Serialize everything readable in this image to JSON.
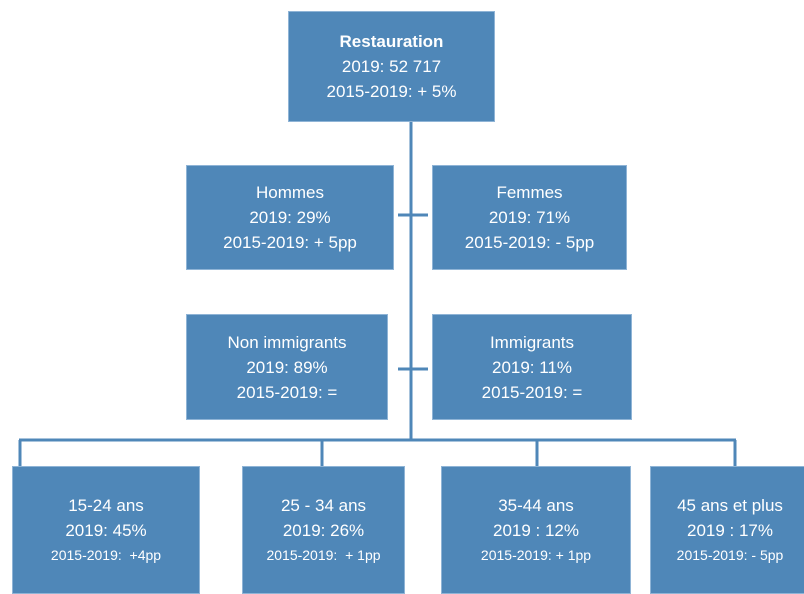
{
  "nodes": [
    {
      "lines": [
        "Restauration",
        "2019: 52 717",
        "2015-2019: + 5%"
      ]
    },
    {
      "lines": [
        "Hommes",
        "2019: 29%",
        "2015-2019: + 5pp"
      ]
    },
    {
      "lines": [
        "Femmes",
        "2019: 71%",
        "2015-2019: - 5pp"
      ]
    },
    {
      "lines": [
        "Non immigrants",
        "2019: 89%",
        "2015-2019: ="
      ]
    },
    {
      "lines": [
        "Immigrants",
        "2019: 11%",
        "2015-2019: ="
      ]
    },
    {
      "lines": [
        "15-24 ans",
        "2019: 45%",
        "2015-2019:  +4pp"
      ]
    },
    {
      "lines": [
        "25 - 34 ans",
        "2019: 26%",
        "2015-2019:  + 1pp"
      ]
    },
    {
      "lines": [
        "35-44 ans",
        "2019 : 12%",
        "2015-2019: + 1pp"
      ]
    },
    {
      "lines": [
        "45 ans et plus",
        "2019 : 17%",
        "2015-2019: - 5pp"
      ]
    }
  ]
}
